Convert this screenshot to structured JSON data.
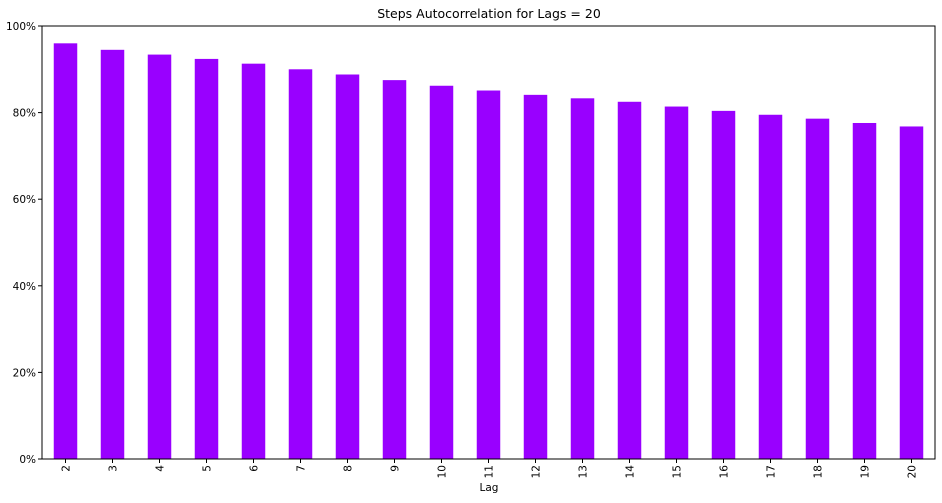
{
  "chart_data": {
    "type": "bar",
    "title": "Steps Autocorrelation for Lags = 20",
    "xlabel": "Lag",
    "ylabel": "",
    "categories": [
      "2",
      "3",
      "4",
      "5",
      "6",
      "7",
      "8",
      "9",
      "10",
      "11",
      "12",
      "13",
      "14",
      "15",
      "16",
      "17",
      "18",
      "19",
      "20"
    ],
    "values": [
      0.96,
      0.945,
      0.934,
      0.924,
      0.913,
      0.9,
      0.888,
      0.875,
      0.862,
      0.851,
      0.841,
      0.833,
      0.825,
      0.814,
      0.804,
      0.795,
      0.786,
      0.776,
      0.768
    ],
    "ylim": [
      0,
      1.0
    ],
    "yticks": [
      0,
      0.2,
      0.4,
      0.6,
      0.8,
      1.0
    ],
    "ytick_labels": [
      "0%",
      "20%",
      "40%",
      "60%",
      "80%",
      "100%"
    ],
    "grid": false,
    "legend": "none",
    "bar_color": "#9900ff"
  }
}
